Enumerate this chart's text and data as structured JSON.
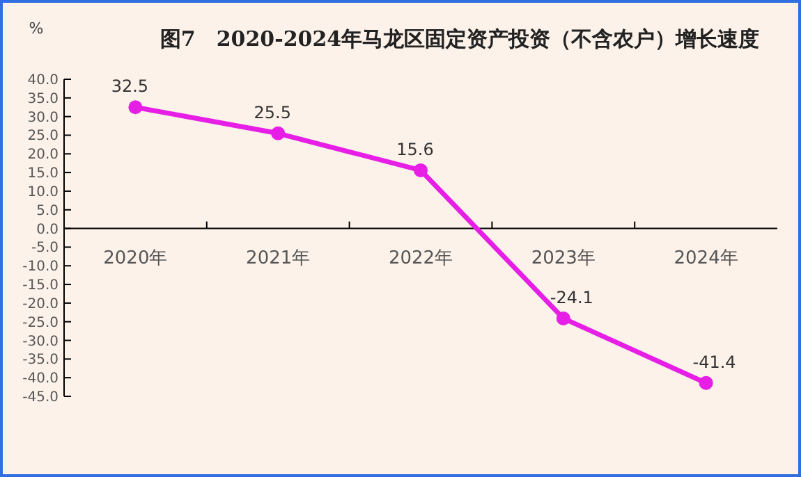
{
  "chart_data": {
    "type": "line",
    "title": "图7　2020-2024年马龙区固定资产投资（不含农户）增长速度",
    "ylabel": "%",
    "categories": [
      "2020年",
      "2021年",
      "2022年",
      "2023年",
      "2024年"
    ],
    "series": [
      {
        "color": "#e61ee6",
        "values": [
          32.5,
          25.5,
          15.6,
          -24.1,
          -41.4
        ]
      }
    ],
    "ylim": [
      -45,
      40
    ],
    "yticks": [
      {
        "value": -45,
        "label": "-45.0"
      },
      {
        "value": -40,
        "label": "-40.0"
      },
      {
        "value": -35,
        "label": "-35.0"
      },
      {
        "value": -30,
        "label": "-30.0"
      },
      {
        "value": -25,
        "label": "-25.0"
      },
      {
        "value": -20,
        "label": "-20.0"
      },
      {
        "value": -15,
        "label": "-15.0"
      },
      {
        "value": -10,
        "label": "-10.0"
      },
      {
        "value": -5,
        "label": "-5.0"
      },
      {
        "value": 0,
        "label": "0.0"
      },
      {
        "value": 5,
        "label": "5.0"
      },
      {
        "value": 10,
        "label": "10.0"
      },
      {
        "value": 15,
        "label": "15.0"
      },
      {
        "value": 20,
        "label": "20.0"
      },
      {
        "value": 25,
        "label": "25.0"
      },
      {
        "value": 30,
        "label": "30.0"
      },
      {
        "value": 35,
        "label": "35.0"
      },
      {
        "value": 40,
        "label": "40.0"
      }
    ],
    "marker": "circle",
    "data_labels": true,
    "grid": false
  }
}
